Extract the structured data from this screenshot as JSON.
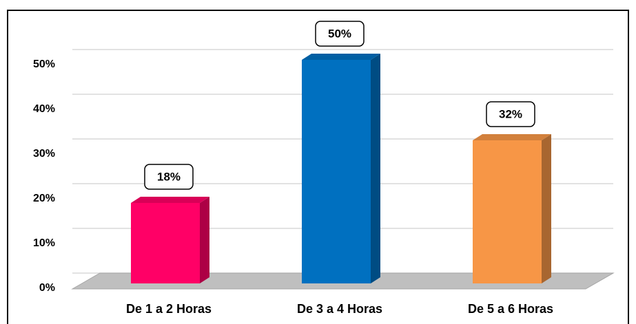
{
  "chart_data": {
    "type": "bar",
    "categories": [
      "De 1 a 2 Horas",
      "De 3 a 4 Horas",
      "De 5 a 6 Horas"
    ],
    "values": [
      18,
      50,
      32
    ],
    "value_labels": [
      "18%",
      "50%",
      "32%"
    ],
    "colors": [
      "#ff0066",
      "#0070c0",
      "#f79646"
    ],
    "ylim": [
      0,
      50
    ],
    "yticks": [
      {
        "value": 0,
        "label": "0%"
      },
      {
        "value": 10,
        "label": "10%"
      },
      {
        "value": 20,
        "label": "20%"
      },
      {
        "value": 30,
        "label": "30%"
      },
      {
        "value": 40,
        "label": "40%"
      },
      {
        "value": 50,
        "label": "50%"
      }
    ],
    "grid": true
  }
}
